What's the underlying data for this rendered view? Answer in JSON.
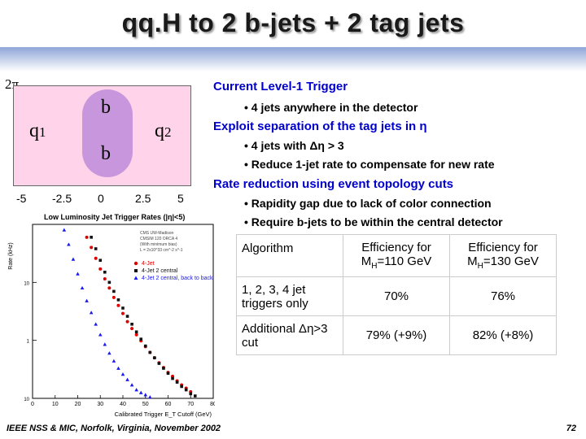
{
  "title": "qq.H to 2 b-jets + 2 tag jets",
  "diagram": {
    "two_pi": "2π",
    "quark1": "q",
    "quark1_sub": "1",
    "quark2": "q",
    "quark2_sub": "2",
    "b_top": "b",
    "b_bottom": "b",
    "eta_ticks": [
      "-5",
      "-2.5",
      "0",
      "2.5",
      "5"
    ]
  },
  "text": {
    "h1": "Current Level-1 Trigger",
    "b1": "• 4 jets anywhere in the detector",
    "h2": "Exploit separation of the tag jets in η",
    "b2": "• 4 jets with Δη > 3",
    "b3": "• Reduce 1-jet rate to compensate for new rate",
    "h3": "Rate reduction using event topology cuts",
    "b4": "• Rapidity gap due to lack of color connection",
    "b5": "• Require b-jets to be within the central detector"
  },
  "table": {
    "headers": [
      "Algorithm",
      "Efficiency for M",
      "Efficiency for M"
    ],
    "header_sub": "H",
    "header_mass": [
      "=110 GeV",
      "=130 GeV"
    ],
    "rows": [
      {
        "algo": "1, 2, 3, 4 jet triggers only",
        "e110": "70%",
        "e130": "76%"
      },
      {
        "algo": "Additional Δη>3 cut",
        "e110": "79% (+9%)",
        "e130": "82% (+8%)"
      }
    ]
  },
  "footer": "IEEE NSS & MIC, Norfolk, Virginia, November 2002",
  "page_number": "72",
  "chart_data": {
    "type": "scatter",
    "title": "Low Luminosity Jet Trigger Rates (|η|<5)",
    "xlabel": "Calibrated Trigger E_T Cutoff (GeV)",
    "ylabel": "Rate (kHz)",
    "xlim": [
      0,
      80
    ],
    "ylog": true,
    "ylim": [
      0.1,
      100
    ],
    "x_ticks": [
      "0",
      "10",
      "20",
      "30",
      "40",
      "50",
      "60",
      "70",
      "80"
    ],
    "y_ticks": [
      "10",
      "1",
      "10"
    ],
    "info_lines": [
      "CMS UW-Madison",
      "CMSIM 120 ORCA 4",
      "(With minimum bias)",
      "L = 2x10^33 cm^-2 s^-1"
    ],
    "colors": {
      "s1": "#dd0000",
      "s2": "#111111",
      "s3": "#1a1aee"
    },
    "series": [
      {
        "name": "4-Jet",
        "marker": "circle",
        "x": [
          24,
          26,
          28,
          30,
          32,
          34,
          36,
          38,
          40,
          42,
          44,
          46,
          48,
          50,
          52,
          54,
          56,
          58,
          60,
          62,
          64,
          66,
          68,
          70
        ],
        "y": [
          60,
          40,
          26,
          17,
          11.5,
          8,
          5.5,
          4,
          2.9,
          2.1,
          1.6,
          1.25,
          0.98,
          0.78,
          0.62,
          0.5,
          0.41,
          0.34,
          0.28,
          0.24,
          0.2,
          0.17,
          0.15,
          0.13
        ]
      },
      {
        "name": "4-Jet 2 central",
        "marker": "square",
        "x": [
          26,
          28,
          30,
          32,
          34,
          36,
          38,
          40,
          42,
          44,
          46,
          48,
          50,
          52,
          54,
          56,
          58,
          60,
          62,
          64,
          66,
          68,
          70,
          72
        ],
        "y": [
          60,
          38,
          24,
          15,
          10,
          7,
          5,
          3.6,
          2.6,
          1.9,
          1.4,
          1.05,
          0.8,
          0.62,
          0.5,
          0.4,
          0.33,
          0.27,
          0.22,
          0.19,
          0.16,
          0.14,
          0.12,
          0.11
        ]
      },
      {
        "name": "4-Jet 2 central, back to back",
        "marker": "triangle",
        "x": [
          14,
          16,
          18,
          20,
          22,
          24,
          26,
          28,
          30,
          32,
          34,
          36,
          38,
          40,
          42,
          44,
          46,
          48,
          50,
          52
        ],
        "y": [
          80,
          45,
          25,
          14,
          8,
          4.8,
          3,
          1.9,
          1.25,
          0.85,
          0.6,
          0.44,
          0.33,
          0.26,
          0.21,
          0.17,
          0.14,
          0.125,
          0.115,
          0.105
        ]
      }
    ]
  }
}
